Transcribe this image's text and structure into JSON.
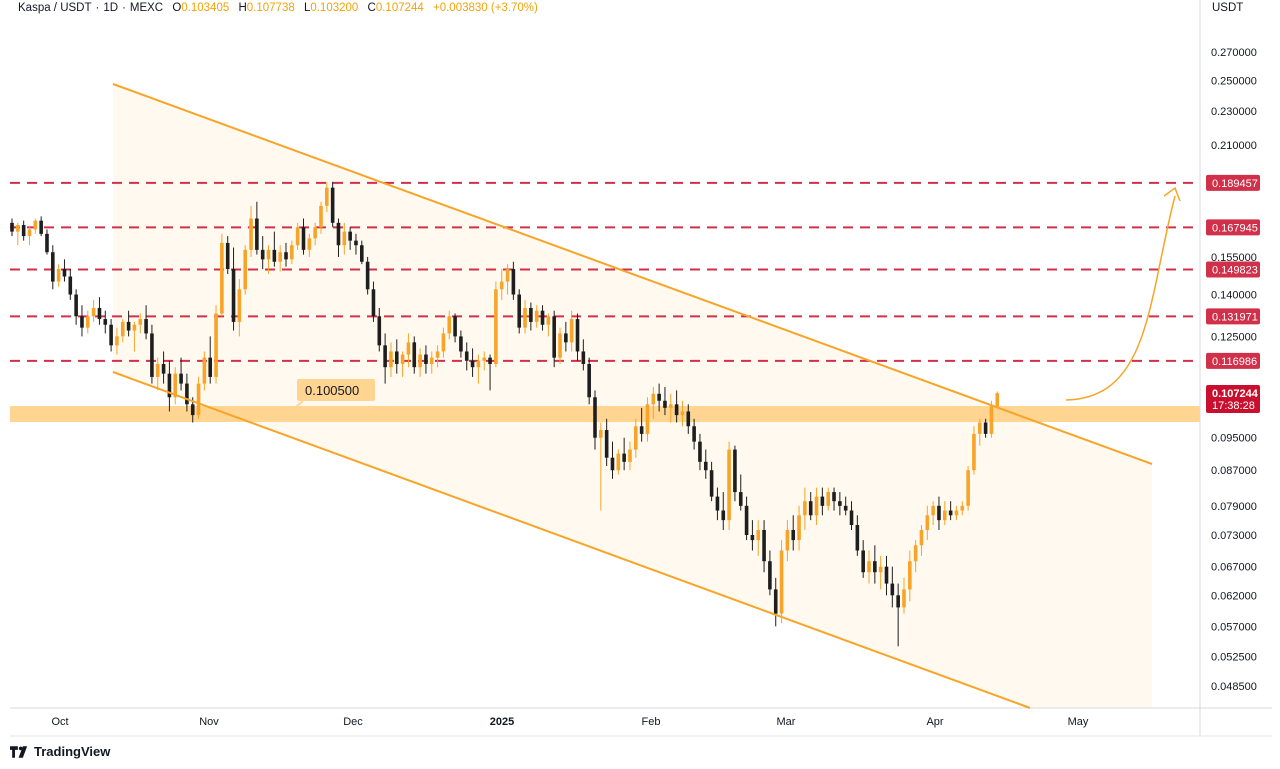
{
  "header": {
    "symbol": "Kaspa / USDT",
    "interval": "1D",
    "exchange": "MEXC",
    "open_label": "O",
    "open": "0.103405",
    "high_label": "H",
    "high": "0.107738",
    "low_label": "L",
    "low": "0.103200",
    "close_label": "C",
    "close": "0.107244",
    "change": "+0.003830 (+3.70%)"
  },
  "currency": "USDT",
  "footer": {
    "brand": "TradingView"
  },
  "colors": {
    "bull": "#f7a428",
    "bear": "#1e1e1e",
    "channel": "#f7a428",
    "resistance": "#d0304a",
    "support_zone": "#ffd591",
    "channel_fill": "#fff9ef"
  },
  "chart_data": {
    "type": "candlestick",
    "y_axis_ticks": [
      "0.270000",
      "0.250000",
      "0.230000",
      "0.210000",
      "0.155000",
      "0.140000",
      "0.125000",
      "0.095000",
      "0.087000",
      "0.079000",
      "0.073000",
      "0.067000",
      "0.062000",
      "0.057000",
      "0.052500",
      "0.048500"
    ],
    "x_axis_ticks": [
      "Oct",
      "Nov",
      "Dec",
      "2025",
      "Feb",
      "Mar",
      "Apr",
      "May"
    ],
    "resistance_levels": [
      "0.189457",
      "0.167945",
      "0.149823",
      "0.131971",
      "0.116986"
    ],
    "support_zone_label": "0.100500",
    "current_price": "0.107244",
    "countdown": "17:38:28",
    "ylim": [
      0.045,
      0.29
    ],
    "candles": [
      {
        "o": 0.17,
        "h": 0.172,
        "l": 0.164,
        "c": 0.166
      },
      {
        "o": 0.166,
        "h": 0.17,
        "l": 0.16,
        "c": 0.169
      },
      {
        "o": 0.169,
        "h": 0.171,
        "l": 0.162,
        "c": 0.164
      },
      {
        "o": 0.164,
        "h": 0.168,
        "l": 0.16,
        "c": 0.167
      },
      {
        "o": 0.167,
        "h": 0.172,
        "l": 0.165,
        "c": 0.171
      },
      {
        "o": 0.171,
        "h": 0.173,
        "l": 0.164,
        "c": 0.165
      },
      {
        "o": 0.165,
        "h": 0.167,
        "l": 0.156,
        "c": 0.157
      },
      {
        "o": 0.157,
        "h": 0.16,
        "l": 0.142,
        "c": 0.145
      },
      {
        "o": 0.145,
        "h": 0.152,
        "l": 0.143,
        "c": 0.15
      },
      {
        "o": 0.15,
        "h": 0.154,
        "l": 0.145,
        "c": 0.147
      },
      {
        "o": 0.147,
        "h": 0.15,
        "l": 0.138,
        "c": 0.14
      },
      {
        "o": 0.14,
        "h": 0.142,
        "l": 0.129,
        "c": 0.132
      },
      {
        "o": 0.132,
        "h": 0.136,
        "l": 0.125,
        "c": 0.128
      },
      {
        "o": 0.128,
        "h": 0.134,
        "l": 0.126,
        "c": 0.132
      },
      {
        "o": 0.132,
        "h": 0.138,
        "l": 0.13,
        "c": 0.135
      },
      {
        "o": 0.135,
        "h": 0.139,
        "l": 0.129,
        "c": 0.131
      },
      {
        "o": 0.131,
        "h": 0.134,
        "l": 0.126,
        "c": 0.129
      },
      {
        "o": 0.129,
        "h": 0.131,
        "l": 0.12,
        "c": 0.122
      },
      {
        "o": 0.122,
        "h": 0.128,
        "l": 0.119,
        "c": 0.125
      },
      {
        "o": 0.125,
        "h": 0.131,
        "l": 0.123,
        "c": 0.13
      },
      {
        "o": 0.13,
        "h": 0.134,
        "l": 0.125,
        "c": 0.127
      },
      {
        "o": 0.127,
        "h": 0.13,
        "l": 0.12,
        "c": 0.129
      },
      {
        "o": 0.129,
        "h": 0.133,
        "l": 0.126,
        "c": 0.131
      },
      {
        "o": 0.131,
        "h": 0.136,
        "l": 0.124,
        "c": 0.126
      },
      {
        "o": 0.126,
        "h": 0.129,
        "l": 0.11,
        "c": 0.112
      },
      {
        "o": 0.112,
        "h": 0.118,
        "l": 0.108,
        "c": 0.116
      },
      {
        "o": 0.116,
        "h": 0.12,
        "l": 0.11,
        "c": 0.113
      },
      {
        "o": 0.113,
        "h": 0.117,
        "l": 0.102,
        "c": 0.106
      },
      {
        "o": 0.106,
        "h": 0.115,
        "l": 0.104,
        "c": 0.113
      },
      {
        "o": 0.113,
        "h": 0.118,
        "l": 0.108,
        "c": 0.11
      },
      {
        "o": 0.11,
        "h": 0.113,
        "l": 0.102,
        "c": 0.104
      },
      {
        "o": 0.104,
        "h": 0.106,
        "l": 0.099,
        "c": 0.101
      },
      {
        "o": 0.101,
        "h": 0.112,
        "l": 0.1,
        "c": 0.11
      },
      {
        "o": 0.11,
        "h": 0.12,
        "l": 0.108,
        "c": 0.118
      },
      {
        "o": 0.118,
        "h": 0.125,
        "l": 0.11,
        "c": 0.112
      },
      {
        "o": 0.112,
        "h": 0.136,
        "l": 0.11,
        "c": 0.133
      },
      {
        "o": 0.133,
        "h": 0.165,
        "l": 0.132,
        "c": 0.161
      },
      {
        "o": 0.161,
        "h": 0.164,
        "l": 0.148,
        "c": 0.15
      },
      {
        "o": 0.15,
        "h": 0.159,
        "l": 0.127,
        "c": 0.13
      },
      {
        "o": 0.13,
        "h": 0.146,
        "l": 0.125,
        "c": 0.142
      },
      {
        "o": 0.142,
        "h": 0.16,
        "l": 0.14,
        "c": 0.158
      },
      {
        "o": 0.158,
        "h": 0.178,
        "l": 0.155,
        "c": 0.172
      },
      {
        "o": 0.172,
        "h": 0.18,
        "l": 0.156,
        "c": 0.158
      },
      {
        "o": 0.158,
        "h": 0.164,
        "l": 0.15,
        "c": 0.154
      },
      {
        "o": 0.154,
        "h": 0.16,
        "l": 0.148,
        "c": 0.158
      },
      {
        "o": 0.158,
        "h": 0.166,
        "l": 0.151,
        "c": 0.153
      },
      {
        "o": 0.153,
        "h": 0.16,
        "l": 0.149,
        "c": 0.157
      },
      {
        "o": 0.157,
        "h": 0.161,
        "l": 0.151,
        "c": 0.154
      },
      {
        "o": 0.154,
        "h": 0.162,
        "l": 0.152,
        "c": 0.16
      },
      {
        "o": 0.16,
        "h": 0.17,
        "l": 0.158,
        "c": 0.168
      },
      {
        "o": 0.168,
        "h": 0.172,
        "l": 0.156,
        "c": 0.158
      },
      {
        "o": 0.158,
        "h": 0.165,
        "l": 0.155,
        "c": 0.163
      },
      {
        "o": 0.163,
        "h": 0.17,
        "l": 0.16,
        "c": 0.168
      },
      {
        "o": 0.168,
        "h": 0.18,
        "l": 0.165,
        "c": 0.178
      },
      {
        "o": 0.178,
        "h": 0.19,
        "l": 0.175,
        "c": 0.187
      },
      {
        "o": 0.187,
        "h": 0.19,
        "l": 0.168,
        "c": 0.17
      },
      {
        "o": 0.17,
        "h": 0.172,
        "l": 0.155,
        "c": 0.16
      },
      {
        "o": 0.16,
        "h": 0.17,
        "l": 0.156,
        "c": 0.166
      },
      {
        "o": 0.166,
        "h": 0.168,
        "l": 0.158,
        "c": 0.162
      },
      {
        "o": 0.162,
        "h": 0.165,
        "l": 0.156,
        "c": 0.16
      },
      {
        "o": 0.16,
        "h": 0.162,
        "l": 0.152,
        "c": 0.153
      },
      {
        "o": 0.153,
        "h": 0.155,
        "l": 0.14,
        "c": 0.142
      },
      {
        "o": 0.142,
        "h": 0.145,
        "l": 0.13,
        "c": 0.132
      },
      {
        "o": 0.132,
        "h": 0.135,
        "l": 0.12,
        "c": 0.122
      },
      {
        "o": 0.122,
        "h": 0.126,
        "l": 0.11,
        "c": 0.115
      },
      {
        "o": 0.115,
        "h": 0.123,
        "l": 0.112,
        "c": 0.12
      },
      {
        "o": 0.12,
        "h": 0.124,
        "l": 0.113,
        "c": 0.116
      },
      {
        "o": 0.116,
        "h": 0.12,
        "l": 0.112,
        "c": 0.119
      },
      {
        "o": 0.119,
        "h": 0.126,
        "l": 0.115,
        "c": 0.123
      },
      {
        "o": 0.123,
        "h": 0.125,
        "l": 0.113,
        "c": 0.115
      },
      {
        "o": 0.115,
        "h": 0.121,
        "l": 0.112,
        "c": 0.119
      },
      {
        "o": 0.119,
        "h": 0.122,
        "l": 0.113,
        "c": 0.116
      },
      {
        "o": 0.116,
        "h": 0.12,
        "l": 0.113,
        "c": 0.118
      },
      {
        "o": 0.118,
        "h": 0.122,
        "l": 0.115,
        "c": 0.12
      },
      {
        "o": 0.12,
        "h": 0.128,
        "l": 0.118,
        "c": 0.126
      },
      {
        "o": 0.126,
        "h": 0.134,
        "l": 0.124,
        "c": 0.132
      },
      {
        "o": 0.132,
        "h": 0.133,
        "l": 0.123,
        "c": 0.125
      },
      {
        "o": 0.125,
        "h": 0.127,
        "l": 0.118,
        "c": 0.12
      },
      {
        "o": 0.12,
        "h": 0.123,
        "l": 0.114,
        "c": 0.117
      },
      {
        "o": 0.117,
        "h": 0.121,
        "l": 0.112,
        "c": 0.115
      },
      {
        "o": 0.115,
        "h": 0.119,
        "l": 0.11,
        "c": 0.117
      },
      {
        "o": 0.117,
        "h": 0.12,
        "l": 0.114,
        "c": 0.118
      },
      {
        "o": 0.118,
        "h": 0.119,
        "l": 0.108,
        "c": 0.116
      },
      {
        "o": 0.116,
        "h": 0.145,
        "l": 0.115,
        "c": 0.142
      },
      {
        "o": 0.142,
        "h": 0.15,
        "l": 0.138,
        "c": 0.145
      },
      {
        "o": 0.145,
        "h": 0.152,
        "l": 0.14,
        "c": 0.15
      },
      {
        "o": 0.15,
        "h": 0.153,
        "l": 0.138,
        "c": 0.14
      },
      {
        "o": 0.14,
        "h": 0.142,
        "l": 0.126,
        "c": 0.128
      },
      {
        "o": 0.128,
        "h": 0.138,
        "l": 0.126,
        "c": 0.135
      },
      {
        "o": 0.135,
        "h": 0.137,
        "l": 0.127,
        "c": 0.13
      },
      {
        "o": 0.13,
        "h": 0.136,
        "l": 0.128,
        "c": 0.134
      },
      {
        "o": 0.134,
        "h": 0.136,
        "l": 0.127,
        "c": 0.129
      },
      {
        "o": 0.129,
        "h": 0.133,
        "l": 0.125,
        "c": 0.132
      },
      {
        "o": 0.132,
        "h": 0.134,
        "l": 0.115,
        "c": 0.118
      },
      {
        "o": 0.118,
        "h": 0.128,
        "l": 0.116,
        "c": 0.126
      },
      {
        "o": 0.126,
        "h": 0.13,
        "l": 0.12,
        "c": 0.123
      },
      {
        "o": 0.123,
        "h": 0.134,
        "l": 0.12,
        "c": 0.131
      },
      {
        "o": 0.131,
        "h": 0.133,
        "l": 0.117,
        "c": 0.12
      },
      {
        "o": 0.12,
        "h": 0.124,
        "l": 0.114,
        "c": 0.116
      },
      {
        "o": 0.116,
        "h": 0.118,
        "l": 0.104,
        "c": 0.106
      },
      {
        "o": 0.106,
        "h": 0.108,
        "l": 0.092,
        "c": 0.095
      },
      {
        "o": 0.095,
        "h": 0.099,
        "l": 0.078,
        "c": 0.097
      },
      {
        "o": 0.097,
        "h": 0.1,
        "l": 0.088,
        "c": 0.09
      },
      {
        "o": 0.09,
        "h": 0.094,
        "l": 0.085,
        "c": 0.087
      },
      {
        "o": 0.087,
        "h": 0.092,
        "l": 0.086,
        "c": 0.091
      },
      {
        "o": 0.091,
        "h": 0.095,
        "l": 0.087,
        "c": 0.089
      },
      {
        "o": 0.089,
        "h": 0.094,
        "l": 0.087,
        "c": 0.092
      },
      {
        "o": 0.092,
        "h": 0.1,
        "l": 0.09,
        "c": 0.098
      },
      {
        "o": 0.098,
        "h": 0.103,
        "l": 0.094,
        "c": 0.096
      },
      {
        "o": 0.096,
        "h": 0.106,
        "l": 0.094,
        "c": 0.104
      },
      {
        "o": 0.104,
        "h": 0.109,
        "l": 0.1,
        "c": 0.107
      },
      {
        "o": 0.107,
        "h": 0.11,
        "l": 0.102,
        "c": 0.105
      },
      {
        "o": 0.105,
        "h": 0.109,
        "l": 0.101,
        "c": 0.103
      },
      {
        "o": 0.103,
        "h": 0.107,
        "l": 0.099,
        "c": 0.104
      },
      {
        "o": 0.104,
        "h": 0.108,
        "l": 0.099,
        "c": 0.101
      },
      {
        "o": 0.101,
        "h": 0.105,
        "l": 0.098,
        "c": 0.102
      },
      {
        "o": 0.102,
        "h": 0.104,
        "l": 0.096,
        "c": 0.098
      },
      {
        "o": 0.098,
        "h": 0.1,
        "l": 0.092,
        "c": 0.094
      },
      {
        "o": 0.094,
        "h": 0.096,
        "l": 0.087,
        "c": 0.089
      },
      {
        "o": 0.089,
        "h": 0.092,
        "l": 0.085,
        "c": 0.087
      },
      {
        "o": 0.087,
        "h": 0.089,
        "l": 0.08,
        "c": 0.081
      },
      {
        "o": 0.081,
        "h": 0.083,
        "l": 0.076,
        "c": 0.078
      },
      {
        "o": 0.078,
        "h": 0.082,
        "l": 0.074,
        "c": 0.076
      },
      {
        "o": 0.076,
        "h": 0.094,
        "l": 0.074,
        "c": 0.092
      },
      {
        "o": 0.092,
        "h": 0.093,
        "l": 0.08,
        "c": 0.082
      },
      {
        "o": 0.082,
        "h": 0.086,
        "l": 0.078,
        "c": 0.079
      },
      {
        "o": 0.079,
        "h": 0.081,
        "l": 0.072,
        "c": 0.073
      },
      {
        "o": 0.073,
        "h": 0.076,
        "l": 0.07,
        "c": 0.072
      },
      {
        "o": 0.072,
        "h": 0.076,
        "l": 0.069,
        "c": 0.074
      },
      {
        "o": 0.074,
        "h": 0.076,
        "l": 0.066,
        "c": 0.068
      },
      {
        "o": 0.068,
        "h": 0.07,
        "l": 0.062,
        "c": 0.063
      },
      {
        "o": 0.063,
        "h": 0.065,
        "l": 0.057,
        "c": 0.059
      },
      {
        "o": 0.059,
        "h": 0.072,
        "l": 0.0575,
        "c": 0.07
      },
      {
        "o": 0.07,
        "h": 0.076,
        "l": 0.068,
        "c": 0.074
      },
      {
        "o": 0.074,
        "h": 0.077,
        "l": 0.07,
        "c": 0.072
      },
      {
        "o": 0.072,
        "h": 0.079,
        "l": 0.07,
        "c": 0.077
      },
      {
        "o": 0.077,
        "h": 0.083,
        "l": 0.074,
        "c": 0.08
      },
      {
        "o": 0.08,
        "h": 0.082,
        "l": 0.076,
        "c": 0.077
      },
      {
        "o": 0.077,
        "h": 0.083,
        "l": 0.075,
        "c": 0.081
      },
      {
        "o": 0.081,
        "h": 0.083,
        "l": 0.077,
        "c": 0.079
      },
      {
        "o": 0.079,
        "h": 0.083,
        "l": 0.078,
        "c": 0.082
      },
      {
        "o": 0.082,
        "h": 0.083,
        "l": 0.078,
        "c": 0.08
      },
      {
        "o": 0.08,
        "h": 0.082,
        "l": 0.077,
        "c": 0.079
      },
      {
        "o": 0.079,
        "h": 0.081,
        "l": 0.077,
        "c": 0.078
      },
      {
        "o": 0.078,
        "h": 0.08,
        "l": 0.074,
        "c": 0.075
      },
      {
        "o": 0.075,
        "h": 0.077,
        "l": 0.069,
        "c": 0.07
      },
      {
        "o": 0.07,
        "h": 0.072,
        "l": 0.065,
        "c": 0.066
      },
      {
        "o": 0.066,
        "h": 0.07,
        "l": 0.064,
        "c": 0.068
      },
      {
        "o": 0.068,
        "h": 0.071,
        "l": 0.064,
        "c": 0.066
      },
      {
        "o": 0.066,
        "h": 0.069,
        "l": 0.063,
        "c": 0.067
      },
      {
        "o": 0.067,
        "h": 0.069,
        "l": 0.062,
        "c": 0.064
      },
      {
        "o": 0.064,
        "h": 0.067,
        "l": 0.06,
        "c": 0.062
      },
      {
        "o": 0.062,
        "h": 0.064,
        "l": 0.054,
        "c": 0.06
      },
      {
        "o": 0.06,
        "h": 0.065,
        "l": 0.059,
        "c": 0.063
      },
      {
        "o": 0.063,
        "h": 0.07,
        "l": 0.061,
        "c": 0.068
      },
      {
        "o": 0.068,
        "h": 0.072,
        "l": 0.066,
        "c": 0.071
      },
      {
        "o": 0.071,
        "h": 0.075,
        "l": 0.069,
        "c": 0.074
      },
      {
        "o": 0.074,
        "h": 0.079,
        "l": 0.072,
        "c": 0.077
      },
      {
        "o": 0.077,
        "h": 0.08,
        "l": 0.075,
        "c": 0.079
      },
      {
        "o": 0.079,
        "h": 0.081,
        "l": 0.074,
        "c": 0.076
      },
      {
        "o": 0.076,
        "h": 0.08,
        "l": 0.075,
        "c": 0.078
      },
      {
        "o": 0.078,
        "h": 0.08,
        "l": 0.076,
        "c": 0.077
      },
      {
        "o": 0.077,
        "h": 0.079,
        "l": 0.076,
        "c": 0.078
      },
      {
        "o": 0.078,
        "h": 0.08,
        "l": 0.077,
        "c": 0.079
      },
      {
        "o": 0.079,
        "h": 0.088,
        "l": 0.078,
        "c": 0.087
      },
      {
        "o": 0.087,
        "h": 0.098,
        "l": 0.086,
        "c": 0.096
      },
      {
        "o": 0.096,
        "h": 0.1,
        "l": 0.093,
        "c": 0.099
      },
      {
        "o": 0.099,
        "h": 0.1,
        "l": 0.095,
        "c": 0.096
      },
      {
        "o": 0.096,
        "h": 0.105,
        "l": 0.095,
        "c": 0.1034
      },
      {
        "o": 0.1034,
        "h": 0.1077,
        "l": 0.1032,
        "c": 0.1072
      }
    ]
  }
}
